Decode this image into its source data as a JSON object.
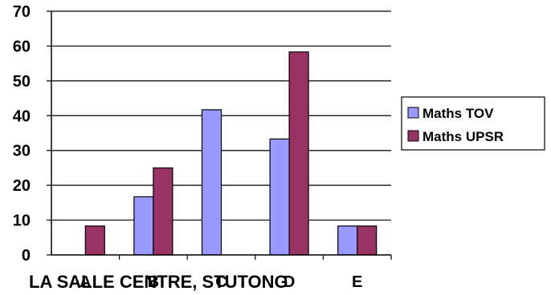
{
  "chart_data": {
    "type": "bar",
    "categories": [
      "A",
      "B",
      "C",
      "D",
      "E"
    ],
    "series": [
      {
        "name": "Maths TOV",
        "values": [
          0,
          16.7,
          41.7,
          33.3,
          8.3
        ],
        "color": "#9999ff"
      },
      {
        "name": "Maths UPSR",
        "values": [
          8.3,
          25,
          0,
          58.3,
          8.3
        ],
        "color": "#993366"
      }
    ],
    "ylim": [
      0,
      70
    ],
    "yticks": [
      0,
      10,
      20,
      30,
      40,
      50,
      60,
      70
    ],
    "grid": true,
    "legend": "right",
    "xlabel": "LA SALLE CENTRE, STUTONG",
    "title": "",
    "ylabel": ""
  }
}
